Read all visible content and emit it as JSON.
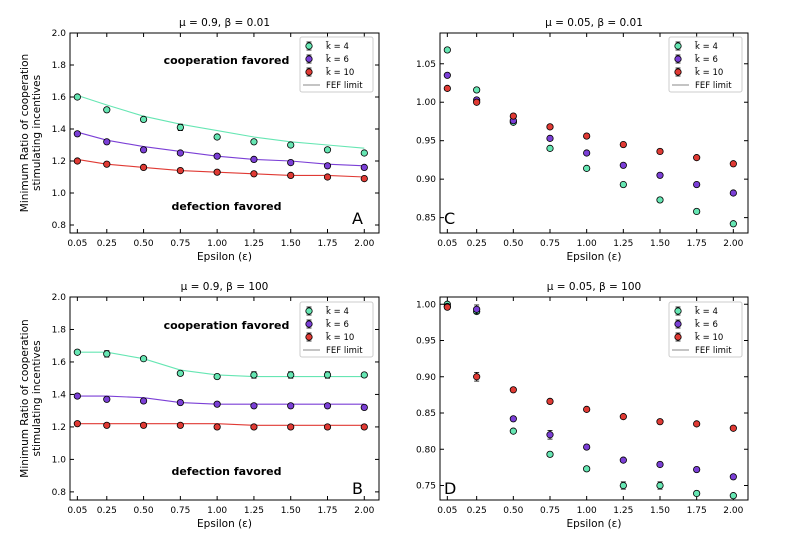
{
  "colors": {
    "k4": "#66e6b3",
    "k6": "#7b3fd6",
    "k10": "#e03a34",
    "fef": "#888888"
  },
  "legend": {
    "k4": "k̄ = 4",
    "k6": "k̄ = 6",
    "k10": "k̄ = 10",
    "fef": "FEF limit"
  },
  "ylabel_shared": [
    "Minimum Ratio of cooperation",
    "stimulating incentives"
  ],
  "chart_data": [
    {
      "id": "A",
      "type": "scatter",
      "title": "μ = 0.9, β = 0.01",
      "xlabel": "Epsilon (ε)",
      "ylabel": "Minimum Ratio of cooperation stimulating incentives",
      "xlim": [
        0,
        2.1
      ],
      "ylim": [
        0.75,
        2.0
      ],
      "xticks": [
        0.05,
        0.25,
        0.5,
        0.75,
        1.0,
        1.25,
        1.5,
        1.75,
        2.0
      ],
      "xtick_labels": [
        "0.05",
        "0.25",
        "0.50",
        "0.75",
        "1.00",
        "1.25",
        "1.50",
        "1.75",
        "2.00"
      ],
      "yticks": [
        0.8,
        1.0,
        1.2,
        1.4,
        1.6,
        1.8,
        2.0
      ],
      "ytick_labels": [
        "0.8",
        "1.0",
        "1.2",
        "1.4",
        "1.6",
        "1.8",
        "2.0"
      ],
      "annotations": [
        "cooperation favored",
        "defection favored"
      ],
      "panel_letter": "A",
      "x": [
        0.05,
        0.25,
        0.5,
        0.75,
        1.0,
        1.25,
        1.5,
        1.75,
        2.0
      ],
      "series": [
        {
          "name": "k4",
          "values": [
            1.6,
            1.52,
            1.46,
            1.41,
            1.35,
            1.32,
            1.3,
            1.27,
            1.25
          ],
          "errors": [
            0,
            0,
            0,
            0.02,
            0,
            0,
            0,
            0,
            0
          ],
          "line": [
            1.61,
            1.55,
            1.48,
            1.43,
            1.39,
            1.35,
            1.32,
            1.3,
            1.28
          ]
        },
        {
          "name": "k6",
          "values": [
            1.37,
            1.32,
            1.27,
            1.25,
            1.23,
            1.21,
            1.19,
            1.17,
            1.16
          ],
          "errors": [
            0,
            0,
            0,
            0,
            0,
            0,
            0,
            0,
            0
          ],
          "line": [
            1.38,
            1.33,
            1.29,
            1.26,
            1.23,
            1.21,
            1.2,
            1.18,
            1.17
          ]
        },
        {
          "name": "k10",
          "values": [
            1.2,
            1.18,
            1.16,
            1.14,
            1.13,
            1.12,
            1.11,
            1.1,
            1.09
          ],
          "errors": [
            0,
            0,
            0,
            0,
            0,
            0,
            0,
            0,
            0
          ],
          "line": [
            1.21,
            1.18,
            1.16,
            1.14,
            1.13,
            1.12,
            1.11,
            1.11,
            1.1
          ]
        }
      ],
      "legend_show_line": true
    },
    {
      "id": "C",
      "type": "scatter",
      "title": "μ = 0.05, β = 0.01",
      "xlabel": "Epsilon (ε)",
      "ylabel": "",
      "xlim": [
        0,
        2.1
      ],
      "ylim": [
        0.83,
        1.09
      ],
      "xticks": [
        0.05,
        0.25,
        0.5,
        0.75,
        1.0,
        1.25,
        1.5,
        1.75,
        2.0
      ],
      "xtick_labels": [
        "0.05",
        "0.25",
        "0.50",
        "0.75",
        "1.00",
        "1.25",
        "1.50",
        "1.75",
        "2.00"
      ],
      "yticks": [
        0.85,
        0.9,
        0.95,
        1.0,
        1.05
      ],
      "ytick_labels": [
        "0.85",
        "0.90",
        "0.95",
        "1.00",
        "1.05"
      ],
      "annotations": [],
      "panel_letter": "C",
      "x": [
        0.05,
        0.25,
        0.5,
        0.75,
        1.0,
        1.25,
        1.5,
        1.75,
        2.0
      ],
      "series": [
        {
          "name": "k4",
          "values": [
            1.068,
            1.016,
            0.974,
            0.94,
            0.914,
            0.893,
            0.873,
            0.858,
            0.842
          ],
          "errors": [
            0,
            0,
            0,
            0,
            0,
            0,
            0,
            0,
            0
          ],
          "line": null
        },
        {
          "name": "k6",
          "values": [
            1.035,
            1.003,
            0.976,
            0.953,
            0.934,
            0.918,
            0.905,
            0.893,
            0.882
          ],
          "errors": [
            0,
            0,
            0,
            0,
            0,
            0,
            0,
            0,
            0
          ],
          "line": null
        },
        {
          "name": "k10",
          "values": [
            1.018,
            1.0,
            0.982,
            0.968,
            0.956,
            0.945,
            0.936,
            0.928,
            0.92
          ],
          "errors": [
            0,
            0,
            0,
            0,
            0,
            0,
            0,
            0,
            0
          ],
          "line": null
        }
      ],
      "legend_show_line": true
    },
    {
      "id": "B",
      "type": "scatter",
      "title": "μ = 0.9, β = 100",
      "xlabel": "Epsilon (ε)",
      "ylabel": "Minimum Ratio of cooperation stimulating incentives",
      "xlim": [
        0,
        2.1
      ],
      "ylim": [
        0.75,
        2.0
      ],
      "xticks": [
        0.05,
        0.25,
        0.5,
        0.75,
        1.0,
        1.25,
        1.5,
        1.75,
        2.0
      ],
      "xtick_labels": [
        "0.05",
        "0.25",
        "0.50",
        "0.75",
        "1.00",
        "1.25",
        "1.50",
        "1.75",
        "2.00"
      ],
      "yticks": [
        0.8,
        1.0,
        1.2,
        1.4,
        1.6,
        1.8,
        2.0
      ],
      "ytick_labels": [
        "0.8",
        "1.0",
        "1.2",
        "1.4",
        "1.6",
        "1.8",
        "2.0"
      ],
      "annotations": [
        "cooperation favored",
        "defection favored"
      ],
      "panel_letter": "B",
      "x": [
        0.05,
        0.25,
        0.5,
        0.75,
        1.0,
        1.25,
        1.5,
        1.75,
        2.0
      ],
      "series": [
        {
          "name": "k4",
          "values": [
            1.66,
            1.65,
            1.62,
            1.53,
            1.51,
            1.52,
            1.52,
            1.52,
            1.52
          ],
          "errors": [
            0,
            0.02,
            0,
            0,
            0,
            0.02,
            0.02,
            0.02,
            0
          ],
          "line": [
            1.66,
            1.66,
            1.62,
            1.55,
            1.52,
            1.51,
            1.51,
            1.51,
            1.51
          ]
        },
        {
          "name": "k6",
          "values": [
            1.39,
            1.37,
            1.36,
            1.35,
            1.34,
            1.33,
            1.33,
            1.33,
            1.32
          ],
          "errors": [
            0,
            0,
            0,
            0,
            0,
            0,
            0,
            0,
            0
          ],
          "line": [
            1.39,
            1.39,
            1.38,
            1.35,
            1.34,
            1.34,
            1.34,
            1.34,
            1.34
          ]
        },
        {
          "name": "k10",
          "values": [
            1.22,
            1.21,
            1.21,
            1.21,
            1.2,
            1.2,
            1.2,
            1.2,
            1.2
          ],
          "errors": [
            0,
            0,
            0,
            0,
            0,
            0,
            0,
            0,
            0
          ],
          "line": [
            1.22,
            1.22,
            1.22,
            1.22,
            1.22,
            1.21,
            1.21,
            1.21,
            1.21
          ]
        }
      ],
      "legend_show_line": true
    },
    {
      "id": "D",
      "type": "scatter",
      "title": "μ = 0.05, β = 100",
      "xlabel": "Epsilon (ε)",
      "ylabel": "",
      "xlim": [
        0,
        2.1
      ],
      "ylim": [
        0.73,
        1.01
      ],
      "xticks": [
        0.05,
        0.25,
        0.5,
        0.75,
        1.0,
        1.25,
        1.5,
        1.75,
        2.0
      ],
      "xtick_labels": [
        "0.05",
        "0.25",
        "0.50",
        "0.75",
        "1.00",
        "1.25",
        "1.50",
        "1.75",
        "2.00"
      ],
      "yticks": [
        0.75,
        0.8,
        0.85,
        0.9,
        0.95,
        1.0
      ],
      "ytick_labels": [
        "0.75",
        "0.80",
        "0.85",
        "0.90",
        "0.95",
        "1.00"
      ],
      "annotations": [],
      "panel_letter": "D",
      "x": [
        0.05,
        0.25,
        0.5,
        0.75,
        1.0,
        1.25,
        1.5,
        1.75,
        2.0
      ],
      "series": [
        {
          "name": "k4",
          "values": [
            1.0,
            0.99,
            0.825,
            0.793,
            0.773,
            0.75,
            0.75,
            0.739,
            0.736
          ],
          "errors": [
            0,
            0,
            0,
            0,
            0,
            0.005,
            0.005,
            0,
            0
          ],
          "line": null
        },
        {
          "name": "k6",
          "values": [
            0.997,
            0.993,
            0.842,
            0.82,
            0.803,
            0.785,
            0.779,
            0.772,
            0.762
          ],
          "errors": [
            0,
            0.006,
            0,
            0.006,
            0,
            0,
            0,
            0,
            0
          ],
          "line": null
        },
        {
          "name": "k10",
          "values": [
            0.996,
            0.9,
            0.882,
            0.866,
            0.855,
            0.845,
            0.838,
            0.835,
            0.829
          ],
          "errors": [
            0,
            0.006,
            0,
            0,
            0,
            0,
            0,
            0,
            0
          ],
          "line": null
        }
      ],
      "legend_show_line": true
    }
  ]
}
